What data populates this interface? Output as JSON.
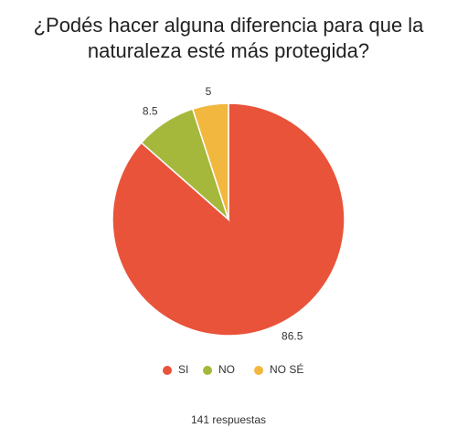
{
  "chart_data": {
    "type": "pie",
    "title": "¿Podés hacer alguna diferencia para que la naturaleza esté más protegida?",
    "categories": [
      "SI",
      "NO",
      "NO SÉ"
    ],
    "values": [
      86.5,
      8.5,
      5
    ],
    "colors": [
      "#e9533a",
      "#a6b83b",
      "#f2b73e"
    ],
    "footer": "141 respuestas"
  }
}
